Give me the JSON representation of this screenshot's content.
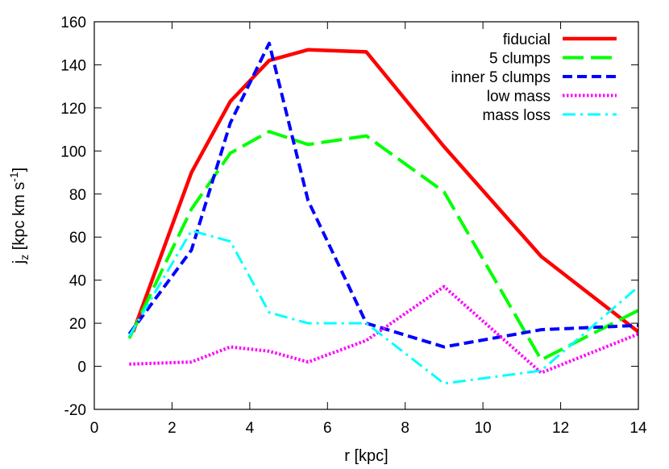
{
  "chart_data": {
    "type": "line",
    "title": "",
    "xlabel": "r [kpc]",
    "ylabel": {
      "main": "j",
      "subscript": "z",
      "unit_open": " [kpc km s",
      "superscript": "-1",
      "unit_close": "]"
    },
    "xlim": [
      0,
      14
    ],
    "ylim": [
      -20,
      160
    ],
    "xticks": [
      0,
      2,
      4,
      6,
      8,
      10,
      12,
      14
    ],
    "yticks": [
      -20,
      0,
      20,
      40,
      60,
      80,
      100,
      120,
      140,
      160
    ],
    "grid": false,
    "legend_position": "top-right",
    "series": [
      {
        "name": "fiducial",
        "color": "#ff0000",
        "dash": "solid",
        "x": [
          1.0,
          2.5,
          3.5,
          4.5,
          5.5,
          7.0,
          9.0,
          11.5,
          14.0
        ],
        "y": [
          16,
          90,
          123,
          142,
          147,
          146,
          102,
          51,
          16
        ]
      },
      {
        "name": "5 clumps",
        "color": "#00ff00",
        "dash": "long-dash",
        "x": [
          0.9,
          2.5,
          3.5,
          4.5,
          5.5,
          7.0,
          9.0,
          11.5,
          14.0
        ],
        "y": [
          13,
          73,
          99,
          109,
          103,
          107,
          81,
          3,
          26
        ]
      },
      {
        "name": "inner 5 clumps",
        "color": "#0000ff",
        "dash": "short-dash",
        "x": [
          0.9,
          2.5,
          3.5,
          4.5,
          5.5,
          7.0,
          9.0,
          11.5,
          14.0
        ],
        "y": [
          15,
          54,
          113,
          150,
          77,
          20,
          9,
          17,
          19
        ]
      },
      {
        "name": "low mass",
        "color": "#ff00ff",
        "dash": "dotted",
        "x": [
          0.9,
          2.5,
          3.5,
          4.5,
          5.5,
          7.0,
          9.0,
          11.5,
          14.0
        ],
        "y": [
          1,
          2,
          9,
          7,
          2,
          12,
          37,
          -3,
          15
        ]
      },
      {
        "name": "mass loss",
        "color": "#00ffff",
        "dash": "dash-dot",
        "x": [
          0.9,
          2.5,
          3.5,
          4.5,
          5.5,
          7.0,
          9.0,
          11.5,
          14.0
        ],
        "y": [
          14,
          63,
          58,
          25,
          20,
          20,
          -8,
          -2,
          37
        ]
      }
    ]
  }
}
